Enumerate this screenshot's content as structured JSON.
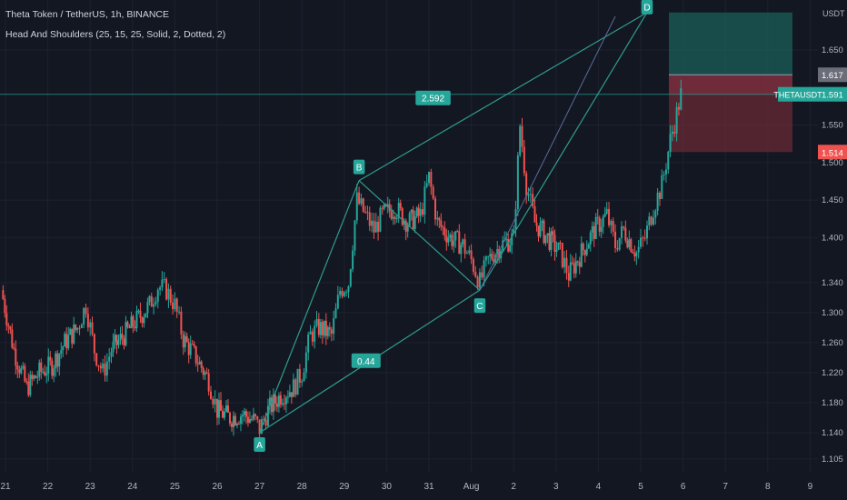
{
  "header": {
    "symbol": "Theta Token / TetherUS",
    "interval": "1h",
    "exchange": "BINANCE",
    "indicator": "Head And Shoulders (25, 15, 25, Solid, 2, Dotted, 2)"
  },
  "price_axis": {
    "unit": "USDT",
    "ticks": [
      "1.650",
      "1.550",
      "1.500",
      "1.450",
      "1.400",
      "1.340",
      "1.300",
      "1.260",
      "1.220",
      "1.180",
      "1.140",
      "1.105"
    ],
    "last_price": "1.591",
    "last_price_symbol": "THETAUSDT",
    "target_label": "1.617",
    "stop_label": "1.514"
  },
  "time_axis": {
    "ticks": [
      "21",
      "22",
      "23",
      "24",
      "25",
      "26",
      "27",
      "28",
      "29",
      "30",
      "31",
      "Aug",
      "2",
      "3",
      "4",
      "5",
      "6",
      "7",
      "8",
      "9"
    ]
  },
  "pattern": {
    "points": [
      {
        "label": "A",
        "day": 27.0,
        "price": 1.14
      },
      {
        "label": "B",
        "day": 29.35,
        "price": 1.476
      },
      {
        "label": "C",
        "day": 32.2,
        "price": 1.33
      },
      {
        "label": "D",
        "day": 36.15,
        "price": 1.7
      }
    ],
    "ratio_bc": "2.592",
    "ratio_ac": "0.44"
  },
  "colors": {
    "background": "#131722",
    "bullish": "#26a69a",
    "bearish": "#ef5350",
    "pattern": "#2f9b8e",
    "target_zone": "#1b5f59",
    "stop_zone": "#6e2b36",
    "grid": "#1e2230"
  },
  "chart_data": {
    "type": "candlestick",
    "x_unit": "day (July 21 = 21, Aug 1 = 32)",
    "xlim": [
      21,
      40
    ],
    "ylim": [
      1.105,
      1.68
    ],
    "price_path": [
      [
        20.9,
        1.33
      ],
      [
        21.2,
        1.25
      ],
      [
        21.5,
        1.2
      ],
      [
        21.8,
        1.22
      ],
      [
        22.1,
        1.23
      ],
      [
        22.4,
        1.26
      ],
      [
        22.7,
        1.28
      ],
      [
        22.9,
        1.31
      ],
      [
        23.1,
        1.25
      ],
      [
        23.3,
        1.22
      ],
      [
        23.5,
        1.25
      ],
      [
        23.8,
        1.27
      ],
      [
        24.1,
        1.29
      ],
      [
        24.4,
        1.31
      ],
      [
        24.6,
        1.335
      ],
      [
        24.8,
        1.33
      ],
      [
        25.0,
        1.31
      ],
      [
        25.2,
        1.265
      ],
      [
        25.5,
        1.24
      ],
      [
        25.8,
        1.21
      ],
      [
        26.0,
        1.17
      ],
      [
        26.3,
        1.16
      ],
      [
        26.6,
        1.165
      ],
      [
        26.9,
        1.155
      ],
      [
        27.0,
        1.145
      ],
      [
        27.2,
        1.17
      ],
      [
        27.5,
        1.19
      ],
      [
        27.8,
        1.2
      ],
      [
        28.0,
        1.22
      ],
      [
        28.2,
        1.27
      ],
      [
        28.4,
        1.28
      ],
      [
        28.7,
        1.27
      ],
      [
        28.9,
        1.33
      ],
      [
        29.1,
        1.34
      ],
      [
        29.3,
        1.45
      ],
      [
        29.5,
        1.43
      ],
      [
        29.7,
        1.41
      ],
      [
        29.9,
        1.43
      ],
      [
        30.2,
        1.44
      ],
      [
        30.5,
        1.42
      ],
      [
        30.8,
        1.43
      ],
      [
        31.0,
        1.48
      ],
      [
        31.2,
        1.42
      ],
      [
        31.5,
        1.4
      ],
      [
        31.8,
        1.39
      ],
      [
        32.0,
        1.37
      ],
      [
        32.2,
        1.34
      ],
      [
        32.4,
        1.37
      ],
      [
        32.7,
        1.39
      ],
      [
        33.0,
        1.4
      ],
      [
        33.15,
        1.55
      ],
      [
        33.3,
        1.47
      ],
      [
        33.5,
        1.42
      ],
      [
        33.8,
        1.4
      ],
      [
        34.1,
        1.38
      ],
      [
        34.3,
        1.35
      ],
      [
        34.6,
        1.38
      ],
      [
        34.9,
        1.41
      ],
      [
        35.2,
        1.43
      ],
      [
        35.4,
        1.39
      ],
      [
        35.6,
        1.41
      ],
      [
        35.9,
        1.38
      ],
      [
        36.1,
        1.4
      ],
      [
        36.3,
        1.44
      ],
      [
        36.5,
        1.47
      ],
      [
        36.7,
        1.53
      ],
      [
        36.85,
        1.565
      ],
      [
        36.95,
        1.591
      ]
    ]
  }
}
